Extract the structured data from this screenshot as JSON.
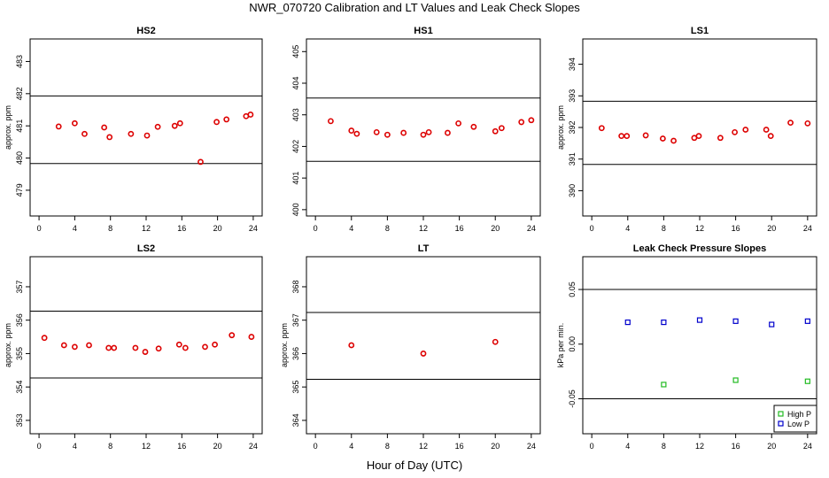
{
  "title": "NWR_070720  Calibration and LT Values and Leak Check Slopes",
  "xlabel": "Hour of Day (UTC)",
  "colors": {
    "point": "#dd0000",
    "high_p": "#22bb22",
    "low_p": "#0000cc",
    "line": "#000000"
  },
  "chart_data": [
    {
      "type": "scatter",
      "title": "HS2",
      "ylabel": "approx. ppm",
      "xlim": [
        -1,
        25
      ],
      "ylim": [
        478.2,
        483.7
      ],
      "xticks": [
        0,
        4,
        8,
        12,
        16,
        20,
        24
      ],
      "yticks": [
        479,
        480,
        481,
        482,
        483
      ],
      "hlines": [
        481.93,
        479.83
      ],
      "series": [
        {
          "color": "point",
          "x": [
            2.2,
            4.0,
            5.1,
            7.3,
            7.9,
            10.3,
            12.1,
            13.3,
            15.2,
            15.8,
            18.1,
            19.9,
            21.0,
            23.2,
            23.7
          ],
          "y": [
            480.98,
            481.08,
            480.75,
            480.95,
            480.65,
            480.75,
            480.7,
            480.97,
            481.0,
            481.08,
            479.88,
            481.12,
            481.2,
            481.3,
            481.35
          ]
        }
      ]
    },
    {
      "type": "scatter",
      "title": "HS1",
      "ylabel": "",
      "xlim": [
        -1,
        25
      ],
      "ylim": [
        399.8,
        405.4
      ],
      "xticks": [
        0,
        4,
        8,
        12,
        16,
        20,
        24
      ],
      "yticks": [
        400,
        401,
        402,
        403,
        404,
        405
      ],
      "hlines": [
        403.53,
        401.53
      ],
      "series": [
        {
          "color": "point",
          "x": [
            1.7,
            4.0,
            4.6,
            6.8,
            8.0,
            9.8,
            12.0,
            12.6,
            14.7,
            15.9,
            17.6,
            20.0,
            20.7,
            22.9,
            24.0
          ],
          "y": [
            402.8,
            402.5,
            402.4,
            402.45,
            402.37,
            402.43,
            402.37,
            402.45,
            402.43,
            402.73,
            402.62,
            402.48,
            402.58,
            402.77,
            402.83
          ]
        }
      ]
    },
    {
      "type": "scatter",
      "title": "LS1",
      "ylabel": "approx. ppm",
      "xlim": [
        -1,
        25
      ],
      "ylim": [
        389.2,
        394.8
      ],
      "xticks": [
        0,
        4,
        8,
        12,
        16,
        20,
        24
      ],
      "yticks": [
        390,
        391,
        392,
        393,
        394
      ],
      "hlines": [
        392.83,
        390.83
      ],
      "series": [
        {
          "color": "point",
          "x": [
            1.1,
            3.3,
            3.9,
            6.0,
            7.9,
            9.1,
            11.4,
            11.9,
            14.3,
            15.9,
            17.1,
            19.4,
            19.9,
            22.1,
            24.0
          ],
          "y": [
            391.98,
            391.73,
            391.73,
            391.75,
            391.65,
            391.58,
            391.67,
            391.73,
            391.67,
            391.85,
            391.93,
            391.93,
            391.73,
            392.15,
            392.13
          ]
        }
      ]
    },
    {
      "type": "scatter",
      "title": "LS2",
      "ylabel": "approx. ppm",
      "xlim": [
        -1,
        25
      ],
      "ylim": [
        352.6,
        357.9
      ],
      "xticks": [
        0,
        4,
        8,
        12,
        16,
        20,
        24
      ],
      "yticks": [
        353,
        354,
        355,
        356,
        357
      ],
      "hlines": [
        356.27,
        354.27
      ],
      "series": [
        {
          "color": "point",
          "x": [
            0.6,
            2.8,
            4.0,
            5.6,
            7.8,
            8.4,
            10.8,
            11.9,
            13.4,
            15.7,
            16.4,
            18.6,
            19.7,
            21.6,
            23.8
          ],
          "y": [
            355.47,
            355.25,
            355.2,
            355.25,
            355.17,
            355.17,
            355.17,
            355.05,
            355.15,
            355.27,
            355.17,
            355.2,
            355.27,
            355.55,
            355.5
          ]
        }
      ]
    },
    {
      "type": "scatter",
      "title": "LT",
      "ylabel": "approx. ppm",
      "xlim": [
        -1,
        25
      ],
      "ylim": [
        363.6,
        368.9
      ],
      "xticks": [
        0,
        4,
        8,
        12,
        16,
        20,
        24
      ],
      "yticks": [
        364,
        365,
        366,
        367,
        368
      ],
      "hlines": [
        367.23,
        365.23
      ],
      "series": [
        {
          "color": "point",
          "x": [
            4.0,
            12.0,
            20.0
          ],
          "y": [
            366.25,
            366.0,
            366.35
          ]
        }
      ]
    },
    {
      "type": "scatter",
      "title": "Leak Check Pressure Slopes",
      "ylabel": "kPa per min.",
      "xlim": [
        -1,
        25
      ],
      "ylim": [
        -0.082,
        0.08
      ],
      "xticks": [
        0,
        4,
        8,
        12,
        16,
        20,
        24
      ],
      "yticks": [
        -0.05,
        0.0,
        0.05
      ],
      "ytick_labels": [
        "-0.05",
        "0.00",
        "0.05"
      ],
      "hlines": [
        0.05,
        -0.05
      ],
      "legend": {
        "position": "bottom-right",
        "entries": [
          {
            "label": "High P",
            "color": "high_p"
          },
          {
            "label": "Low P",
            "color": "low_p"
          }
        ]
      },
      "series": [
        {
          "name": "High P",
          "color": "high_p",
          "marker": "square",
          "x": [
            8,
            16,
            24
          ],
          "y": [
            -0.037,
            -0.033,
            -0.034
          ]
        },
        {
          "name": "Low P",
          "color": "low_p",
          "marker": "square",
          "x": [
            4,
            8,
            12,
            16,
            20,
            24
          ],
          "y": [
            0.02,
            0.02,
            0.022,
            0.021,
            0.018,
            0.021
          ]
        }
      ]
    }
  ]
}
